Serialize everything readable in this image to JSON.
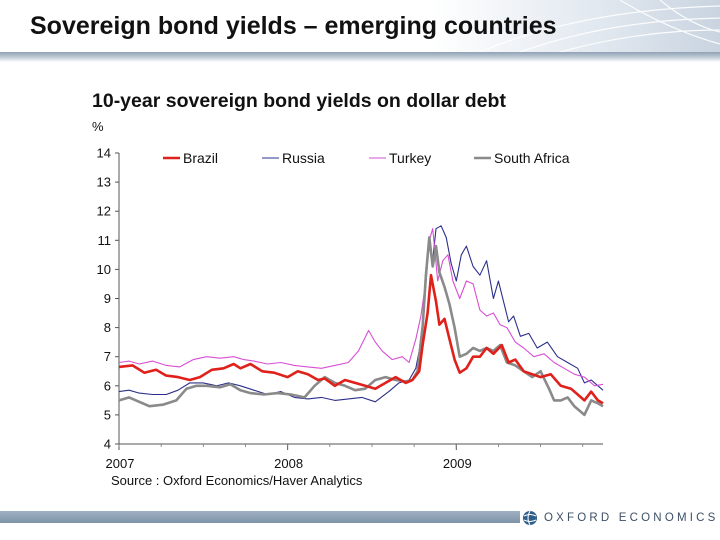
{
  "slide": {
    "title": "Sovereign bond yields – emerging countries",
    "footer_logo_text": "OXFORD ECONOMICS"
  },
  "chart_data": {
    "type": "line",
    "title": "10-year sovereign bond yields on dollar debt",
    "unit": "%",
    "source": "Source : Oxford Economics/Haver Analytics",
    "ylim": [
      4,
      14
    ],
    "yticks": [
      4,
      5,
      6,
      7,
      8,
      9,
      10,
      11,
      12,
      13,
      14
    ],
    "xlim": [
      2007.0,
      2009.87
    ],
    "xticks": [
      {
        "value": 2007.0,
        "label": "2007"
      },
      {
        "value": 2008.0,
        "label": "2008"
      },
      {
        "value": 2009.0,
        "label": "2009"
      }
    ],
    "grid": false,
    "legend_position": "top",
    "series": [
      {
        "name": "Brazil",
        "color": "#e0201b",
        "stroke_width": 2.6,
        "points": [
          [
            2007.0,
            6.65
          ],
          [
            2007.08,
            6.7
          ],
          [
            2007.15,
            6.45
          ],
          [
            2007.22,
            6.55
          ],
          [
            2007.28,
            6.35
          ],
          [
            2007.35,
            6.3
          ],
          [
            2007.42,
            6.2
          ],
          [
            2007.48,
            6.3
          ],
          [
            2007.55,
            6.55
          ],
          [
            2007.62,
            6.6
          ],
          [
            2007.68,
            6.75
          ],
          [
            2007.72,
            6.6
          ],
          [
            2007.78,
            6.75
          ],
          [
            2007.85,
            6.5
          ],
          [
            2007.92,
            6.45
          ],
          [
            2008.0,
            6.3
          ],
          [
            2008.06,
            6.5
          ],
          [
            2008.12,
            6.4
          ],
          [
            2008.18,
            6.2
          ],
          [
            2008.22,
            6.25
          ],
          [
            2008.28,
            6.0
          ],
          [
            2008.34,
            6.2
          ],
          [
            2008.4,
            6.1
          ],
          [
            2008.46,
            6.0
          ],
          [
            2008.52,
            5.9
          ],
          [
            2008.58,
            6.1
          ],
          [
            2008.64,
            6.3
          ],
          [
            2008.7,
            6.1
          ],
          [
            2008.74,
            6.2
          ],
          [
            2008.78,
            6.5
          ],
          [
            2008.8,
            7.4
          ],
          [
            2008.83,
            8.5
          ],
          [
            2008.85,
            9.8
          ],
          [
            2008.88,
            8.9
          ],
          [
            2008.9,
            8.1
          ],
          [
            2008.93,
            8.3
          ],
          [
            2008.96,
            7.6
          ],
          [
            2008.99,
            6.9
          ],
          [
            2009.02,
            6.45
          ],
          [
            2009.06,
            6.6
          ],
          [
            2009.1,
            7.0
          ],
          [
            2009.14,
            7.0
          ],
          [
            2009.18,
            7.3
          ],
          [
            2009.22,
            7.1
          ],
          [
            2009.27,
            7.4
          ],
          [
            2009.31,
            6.8
          ],
          [
            2009.35,
            6.9
          ],
          [
            2009.4,
            6.5
          ],
          [
            2009.45,
            6.4
          ],
          [
            2009.5,
            6.3
          ],
          [
            2009.56,
            6.4
          ],
          [
            2009.62,
            6.0
          ],
          [
            2009.68,
            5.9
          ],
          [
            2009.72,
            5.7
          ],
          [
            2009.76,
            5.5
          ],
          [
            2009.8,
            5.8
          ],
          [
            2009.84,
            5.5
          ],
          [
            2009.87,
            5.4
          ]
        ]
      },
      {
        "name": "Russia",
        "color": "#2b2f8a",
        "stroke_width": 1.1,
        "points": [
          [
            2007.0,
            5.8
          ],
          [
            2007.06,
            5.85
          ],
          [
            2007.12,
            5.75
          ],
          [
            2007.2,
            5.7
          ],
          [
            2007.28,
            5.7
          ],
          [
            2007.35,
            5.85
          ],
          [
            2007.42,
            6.1
          ],
          [
            2007.5,
            6.1
          ],
          [
            2007.58,
            6.0
          ],
          [
            2007.65,
            6.1
          ],
          [
            2007.72,
            6.0
          ],
          [
            2007.8,
            5.85
          ],
          [
            2007.88,
            5.7
          ],
          [
            2007.96,
            5.8
          ],
          [
            2008.04,
            5.6
          ],
          [
            2008.12,
            5.55
          ],
          [
            2008.2,
            5.6
          ],
          [
            2008.28,
            5.5
          ],
          [
            2008.36,
            5.55
          ],
          [
            2008.44,
            5.6
          ],
          [
            2008.52,
            5.45
          ],
          [
            2008.6,
            5.8
          ],
          [
            2008.66,
            6.1
          ],
          [
            2008.72,
            6.2
          ],
          [
            2008.76,
            6.6
          ],
          [
            2008.78,
            7.2
          ],
          [
            2008.8,
            8.2
          ],
          [
            2008.82,
            9.5
          ],
          [
            2008.84,
            11.0
          ],
          [
            2008.86,
            10.3
          ],
          [
            2008.88,
            11.4
          ],
          [
            2008.91,
            11.5
          ],
          [
            2008.94,
            11.1
          ],
          [
            2008.97,
            10.2
          ],
          [
            2009.0,
            9.6
          ],
          [
            2009.03,
            10.5
          ],
          [
            2009.06,
            10.8
          ],
          [
            2009.1,
            10.1
          ],
          [
            2009.14,
            9.8
          ],
          [
            2009.18,
            10.3
          ],
          [
            2009.22,
            9.0
          ],
          [
            2009.25,
            9.6
          ],
          [
            2009.28,
            8.9
          ],
          [
            2009.31,
            8.2
          ],
          [
            2009.34,
            8.4
          ],
          [
            2009.38,
            7.7
          ],
          [
            2009.43,
            7.8
          ],
          [
            2009.48,
            7.3
          ],
          [
            2009.54,
            7.5
          ],
          [
            2009.6,
            7.0
          ],
          [
            2009.66,
            6.8
          ],
          [
            2009.72,
            6.6
          ],
          [
            2009.76,
            6.1
          ],
          [
            2009.8,
            6.2
          ],
          [
            2009.87,
            5.85
          ]
        ]
      },
      {
        "name": "Turkey",
        "color": "#d84fd4",
        "stroke_width": 1.1,
        "points": [
          [
            2007.0,
            6.8
          ],
          [
            2007.06,
            6.85
          ],
          [
            2007.12,
            6.75
          ],
          [
            2007.2,
            6.85
          ],
          [
            2007.28,
            6.7
          ],
          [
            2007.36,
            6.65
          ],
          [
            2007.44,
            6.9
          ],
          [
            2007.52,
            7.0
          ],
          [
            2007.6,
            6.95
          ],
          [
            2007.68,
            7.0
          ],
          [
            2007.74,
            6.9
          ],
          [
            2007.8,
            6.85
          ],
          [
            2007.88,
            6.75
          ],
          [
            2007.96,
            6.8
          ],
          [
            2008.04,
            6.7
          ],
          [
            2008.12,
            6.65
          ],
          [
            2008.2,
            6.6
          ],
          [
            2008.28,
            6.7
          ],
          [
            2008.36,
            6.8
          ],
          [
            2008.42,
            7.2
          ],
          [
            2008.48,
            7.9
          ],
          [
            2008.52,
            7.5
          ],
          [
            2008.56,
            7.2
          ],
          [
            2008.62,
            6.9
          ],
          [
            2008.68,
            7.0
          ],
          [
            2008.72,
            6.8
          ],
          [
            2008.76,
            7.6
          ],
          [
            2008.79,
            8.4
          ],
          [
            2008.82,
            9.6
          ],
          [
            2008.84,
            11.0
          ],
          [
            2008.86,
            11.4
          ],
          [
            2008.89,
            9.6
          ],
          [
            2008.92,
            10.3
          ],
          [
            2008.95,
            10.5
          ],
          [
            2008.98,
            9.6
          ],
          [
            2009.02,
            9.0
          ],
          [
            2009.06,
            9.6
          ],
          [
            2009.1,
            9.5
          ],
          [
            2009.14,
            8.6
          ],
          [
            2009.18,
            8.4
          ],
          [
            2009.22,
            8.5
          ],
          [
            2009.26,
            8.1
          ],
          [
            2009.3,
            8.0
          ],
          [
            2009.35,
            7.5
          ],
          [
            2009.4,
            7.3
          ],
          [
            2009.46,
            7.0
          ],
          [
            2009.52,
            7.1
          ],
          [
            2009.58,
            6.8
          ],
          [
            2009.64,
            6.6
          ],
          [
            2009.7,
            6.4
          ],
          [
            2009.76,
            6.3
          ],
          [
            2009.82,
            6.0
          ],
          [
            2009.87,
            6.05
          ]
        ]
      },
      {
        "name": "South Africa",
        "color": "#8a8a8a",
        "stroke_width": 2.6,
        "points": [
          [
            2007.0,
            5.5
          ],
          [
            2007.06,
            5.6
          ],
          [
            2007.12,
            5.45
          ],
          [
            2007.18,
            5.3
          ],
          [
            2007.26,
            5.35
          ],
          [
            2007.34,
            5.5
          ],
          [
            2007.4,
            5.9
          ],
          [
            2007.46,
            6.0
          ],
          [
            2007.52,
            6.0
          ],
          [
            2007.6,
            5.95
          ],
          [
            2007.66,
            6.05
          ],
          [
            2007.72,
            5.85
          ],
          [
            2007.78,
            5.75
          ],
          [
            2007.86,
            5.7
          ],
          [
            2007.94,
            5.75
          ],
          [
            2008.02,
            5.7
          ],
          [
            2008.1,
            5.6
          ],
          [
            2008.16,
            6.0
          ],
          [
            2008.22,
            6.3
          ],
          [
            2008.28,
            6.1
          ],
          [
            2008.34,
            6.0
          ],
          [
            2008.4,
            5.85
          ],
          [
            2008.46,
            5.9
          ],
          [
            2008.52,
            6.2
          ],
          [
            2008.58,
            6.3
          ],
          [
            2008.64,
            6.2
          ],
          [
            2008.7,
            6.15
          ],
          [
            2008.74,
            6.2
          ],
          [
            2008.77,
            6.5
          ],
          [
            2008.8,
            8.0
          ],
          [
            2008.82,
            9.8
          ],
          [
            2008.84,
            11.1
          ],
          [
            2008.86,
            10.1
          ],
          [
            2008.88,
            10.8
          ],
          [
            2008.9,
            9.9
          ],
          [
            2008.93,
            9.4
          ],
          [
            2008.96,
            8.8
          ],
          [
            2008.99,
            8.0
          ],
          [
            2009.02,
            7.0
          ],
          [
            2009.06,
            7.1
          ],
          [
            2009.1,
            7.3
          ],
          [
            2009.14,
            7.2
          ],
          [
            2009.18,
            7.3
          ],
          [
            2009.22,
            7.2
          ],
          [
            2009.26,
            7.4
          ],
          [
            2009.3,
            6.8
          ],
          [
            2009.35,
            6.7
          ],
          [
            2009.4,
            6.5
          ],
          [
            2009.45,
            6.3
          ],
          [
            2009.5,
            6.5
          ],
          [
            2009.55,
            5.9
          ],
          [
            2009.58,
            5.5
          ],
          [
            2009.62,
            5.5
          ],
          [
            2009.66,
            5.6
          ],
          [
            2009.7,
            5.3
          ],
          [
            2009.74,
            5.1
          ],
          [
            2009.76,
            5.0
          ],
          [
            2009.8,
            5.5
          ],
          [
            2009.84,
            5.4
          ],
          [
            2009.87,
            5.3
          ]
        ]
      }
    ]
  }
}
